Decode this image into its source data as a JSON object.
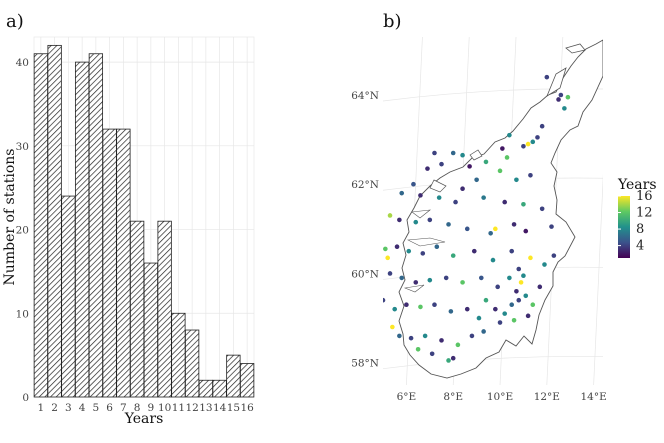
{
  "chart_data": [
    {
      "panel": "a)",
      "type": "bar",
      "title": "",
      "xlabel": "Years",
      "ylabel": "Number of stations",
      "categories": [
        "1",
        "2",
        "3",
        "4",
        "5",
        "6",
        "7",
        "8",
        "9",
        "10",
        "11",
        "12",
        "13",
        "14",
        "15",
        "16"
      ],
      "values": [
        41,
        42,
        24,
        40,
        41,
        32,
        32,
        21,
        16,
        21,
        10,
        8,
        2,
        2,
        5,
        4
      ],
      "ylim": [
        0,
        43
      ],
      "yticks": [
        "0",
        "10",
        "20",
        "30",
        "40"
      ],
      "grid": true,
      "pattern": "diagonal-hatch"
    },
    {
      "panel": "b)",
      "type": "scatter",
      "title": "",
      "xlim": [
        5.0,
        14.4
      ],
      "ylim": [
        57.5,
        65.3
      ],
      "xticks": [
        "6°E",
        "8°E",
        "10°E",
        "12°E",
        "14°E"
      ],
      "yticks": [
        "58°N",
        "60°N",
        "62°N",
        "64°N"
      ],
      "color_variable": "Years",
      "legend": {
        "title": "Years",
        "ticks": [
          "16",
          "12",
          "8",
          "4"
        ],
        "range": [
          1,
          16
        ],
        "palette": [
          "#440154",
          "#3b528b",
          "#21918c",
          "#5ec962",
          "#fde725"
        ],
        "placement": "right"
      },
      "points": [
        {
          "lon": 12.6,
          "lat": 64.0,
          "years": 4
        },
        {
          "lon": 12.9,
          "lat": 63.95,
          "years": 12
        },
        {
          "lon": 12.75,
          "lat": 63.7,
          "years": 8
        },
        {
          "lon": 11.2,
          "lat": 62.9,
          "years": 16
        },
        {
          "lon": 11.0,
          "lat": 62.85,
          "years": 4
        },
        {
          "lon": 11.4,
          "lat": 62.95,
          "years": 8
        },
        {
          "lon": 10.4,
          "lat": 63.1,
          "years": 8
        },
        {
          "lon": 11.6,
          "lat": 63.05,
          "years": 4
        },
        {
          "lon": 10.1,
          "lat": 62.8,
          "years": 2
        },
        {
          "lon": 7.2,
          "lat": 62.7,
          "years": 4
        },
        {
          "lon": 8.0,
          "lat": 62.7,
          "years": 6
        },
        {
          "lon": 8.4,
          "lat": 62.65,
          "years": 8
        },
        {
          "lon": 8.7,
          "lat": 62.4,
          "years": 2
        },
        {
          "lon": 7.5,
          "lat": 62.45,
          "years": 4
        },
        {
          "lon": 6.9,
          "lat": 62.35,
          "years": 3
        },
        {
          "lon": 9.4,
          "lat": 62.5,
          "years": 10
        },
        {
          "lon": 10.0,
          "lat": 62.3,
          "years": 12
        },
        {
          "lon": 10.7,
          "lat": 62.1,
          "years": 8
        },
        {
          "lon": 11.3,
          "lat": 62.2,
          "years": 4
        },
        {
          "lon": 9.0,
          "lat": 62.1,
          "years": 6
        },
        {
          "lon": 6.3,
          "lat": 62.0,
          "years": 5
        },
        {
          "lon": 5.8,
          "lat": 61.8,
          "years": 6
        },
        {
          "lon": 6.6,
          "lat": 61.75,
          "years": 3
        },
        {
          "lon": 7.4,
          "lat": 61.7,
          "years": 8
        },
        {
          "lon": 8.1,
          "lat": 61.6,
          "years": 4
        },
        {
          "lon": 9.3,
          "lat": 61.7,
          "years": 7
        },
        {
          "lon": 10.2,
          "lat": 61.6,
          "years": 3
        },
        {
          "lon": 11.0,
          "lat": 61.55,
          "years": 10
        },
        {
          "lon": 11.8,
          "lat": 61.45,
          "years": 4
        },
        {
          "lon": 5.3,
          "lat": 61.3,
          "years": 14
        },
        {
          "lon": 5.7,
          "lat": 61.2,
          "years": 3
        },
        {
          "lon": 6.4,
          "lat": 61.15,
          "years": 8
        },
        {
          "lon": 7.0,
          "lat": 61.2,
          "years": 4
        },
        {
          "lon": 7.8,
          "lat": 61.1,
          "years": 6
        },
        {
          "lon": 8.6,
          "lat": 61.0,
          "years": 5
        },
        {
          "lon": 9.8,
          "lat": 61.0,
          "years": 16
        },
        {
          "lon": 10.6,
          "lat": 61.1,
          "years": 3
        },
        {
          "lon": 11.1,
          "lat": 60.95,
          "years": 2
        },
        {
          "lon": 12.2,
          "lat": 61.05,
          "years": 4
        },
        {
          "lon": 5.1,
          "lat": 60.55,
          "years": 12
        },
        {
          "lon": 5.2,
          "lat": 60.35,
          "years": 16
        },
        {
          "lon": 5.6,
          "lat": 60.6,
          "years": 3
        },
        {
          "lon": 6.1,
          "lat": 60.5,
          "years": 8
        },
        {
          "lon": 6.7,
          "lat": 60.45,
          "years": 4
        },
        {
          "lon": 7.3,
          "lat": 60.6,
          "years": 6
        },
        {
          "lon": 8.0,
          "lat": 60.4,
          "years": 10
        },
        {
          "lon": 8.9,
          "lat": 60.5,
          "years": 3
        },
        {
          "lon": 9.7,
          "lat": 60.3,
          "years": 8
        },
        {
          "lon": 10.5,
          "lat": 60.5,
          "years": 4
        },
        {
          "lon": 11.3,
          "lat": 60.35,
          "years": 16
        },
        {
          "lon": 11.9,
          "lat": 60.2,
          "years": 8
        },
        {
          "lon": 12.3,
          "lat": 60.4,
          "years": 4
        },
        {
          "lon": 5.3,
          "lat": 60.0,
          "years": 4
        },
        {
          "lon": 5.8,
          "lat": 59.9,
          "years": 6
        },
        {
          "lon": 6.4,
          "lat": 59.8,
          "years": 3
        },
        {
          "lon": 7.0,
          "lat": 59.85,
          "years": 8
        },
        {
          "lon": 7.7,
          "lat": 59.9,
          "years": 4
        },
        {
          "lon": 8.4,
          "lat": 59.8,
          "years": 12
        },
        {
          "lon": 9.2,
          "lat": 59.9,
          "years": 5
        },
        {
          "lon": 9.9,
          "lat": 59.7,
          "years": 4
        },
        {
          "lon": 10.4,
          "lat": 59.9,
          "years": 8
        },
        {
          "lon": 10.7,
          "lat": 59.6,
          "years": 3
        },
        {
          "lon": 10.9,
          "lat": 59.8,
          "years": 16
        },
        {
          "lon": 11.1,
          "lat": 59.5,
          "years": 8
        },
        {
          "lon": 10.8,
          "lat": 59.4,
          "years": 4
        },
        {
          "lon": 11.4,
          "lat": 59.3,
          "years": 12
        },
        {
          "lon": 11.7,
          "lat": 59.7,
          "years": 3
        },
        {
          "lon": 10.5,
          "lat": 59.3,
          "years": 6
        },
        {
          "lon": 10.2,
          "lat": 59.1,
          "years": 8
        },
        {
          "lon": 9.8,
          "lat": 59.2,
          "years": 3
        },
        {
          "lon": 9.4,
          "lat": 59.4,
          "years": 10
        },
        {
          "lon": 5.0,
          "lat": 59.4,
          "years": 4
        },
        {
          "lon": 5.5,
          "lat": 59.2,
          "years": 8
        },
        {
          "lon": 6.0,
          "lat": 59.3,
          "years": 3
        },
        {
          "lon": 6.6,
          "lat": 59.25,
          "years": 12
        },
        {
          "lon": 7.2,
          "lat": 59.3,
          "years": 4
        },
        {
          "lon": 7.9,
          "lat": 59.15,
          "years": 6
        },
        {
          "lon": 8.6,
          "lat": 59.2,
          "years": 3
        },
        {
          "lon": 9.1,
          "lat": 59.0,
          "years": 8
        },
        {
          "lon": 10.0,
          "lat": 58.9,
          "years": 4
        },
        {
          "lon": 10.6,
          "lat": 58.95,
          "years": 12
        },
        {
          "lon": 11.2,
          "lat": 59.05,
          "years": 3
        },
        {
          "lon": 5.4,
          "lat": 58.8,
          "years": 16
        },
        {
          "lon": 5.7,
          "lat": 58.6,
          "years": 6
        },
        {
          "lon": 6.2,
          "lat": 58.55,
          "years": 4
        },
        {
          "lon": 6.8,
          "lat": 58.6,
          "years": 8
        },
        {
          "lon": 7.5,
          "lat": 58.5,
          "years": 3
        },
        {
          "lon": 8.2,
          "lat": 58.4,
          "years": 12
        },
        {
          "lon": 8.8,
          "lat": 58.6,
          "years": 4
        },
        {
          "lon": 9.3,
          "lat": 58.7,
          "years": 6
        },
        {
          "lon": 6.5,
          "lat": 58.3,
          "years": 12
        },
        {
          "lon": 7.1,
          "lat": 58.2,
          "years": 4
        },
        {
          "lon": 7.8,
          "lat": 58.05,
          "years": 10
        },
        {
          "lon": 8.0,
          "lat": 58.1,
          "years": 3
        },
        {
          "lon": 11.0,
          "lat": 59.95,
          "years": 8
        },
        {
          "lon": 10.8,
          "lat": 60.1,
          "years": 4
        },
        {
          "lon": 9.6,
          "lat": 60.9,
          "years": 6
        },
        {
          "lon": 8.4,
          "lat": 61.9,
          "years": 3
        },
        {
          "lon": 10.3,
          "lat": 62.6,
          "years": 12
        },
        {
          "lon": 11.8,
          "lat": 63.3,
          "years": 4
        },
        {
          "lon": 12.5,
          "lat": 63.9,
          "years": 3
        },
        {
          "lon": 12.0,
          "lat": 64.4,
          "years": 4
        }
      ]
    }
  ]
}
